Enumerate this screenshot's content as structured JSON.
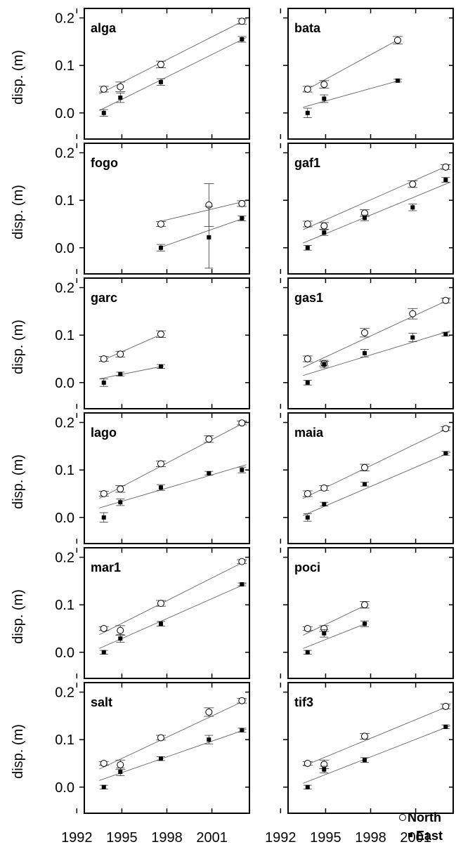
{
  "chart_data": {
    "type": "scatter",
    "ylabel": "disp. (m)",
    "xlim": [
      1992.5,
      2003.5
    ],
    "ylim": [
      -0.055,
      0.22
    ],
    "x_ticks": [
      "1992",
      "1995",
      "1998",
      "2001"
    ],
    "x_tick_values": [
      1992,
      1995,
      1998,
      2001
    ],
    "y_ticks": [
      "0.0",
      "0.1",
      "0.2"
    ],
    "y_tick_values": [
      0.0,
      0.1,
      0.2
    ],
    "legend": {
      "north": "North",
      "east": "East",
      "placement": "bottom-right of last panel"
    },
    "colors": {
      "north_fill": "#ffffff",
      "east_fill": "#000000",
      "line": "#666666",
      "frame": "#000000"
    },
    "panels": [
      {
        "site": "alga",
        "north": {
          "x": [
            1993.8,
            1994.9,
            1997.6,
            2003.0
          ],
          "y": [
            0.05,
            0.055,
            0.102,
            0.193
          ],
          "err": [
            0.006,
            0.01,
            0.007,
            0.006
          ]
        },
        "east": {
          "x": [
            1993.8,
            1994.9,
            1997.6,
            2003.0
          ],
          "y": [
            0.0,
            0.032,
            0.065,
            0.155
          ],
          "err": [
            0.007,
            0.01,
            0.007,
            0.006
          ]
        },
        "north_fit": [
          [
            1993.5,
            0.04
          ],
          [
            2003.3,
            0.197
          ]
        ],
        "east_fit": [
          [
            1993.5,
            0.005
          ],
          [
            2003.3,
            0.159
          ]
        ]
      },
      {
        "site": "bata",
        "north": {
          "x": [
            1993.8,
            1994.9,
            1999.8
          ],
          "y": [
            0.05,
            0.06,
            0.153
          ],
          "err": [
            0.006,
            0.008,
            0.008
          ]
        },
        "east": {
          "x": [
            1993.8,
            1994.9,
            1999.8
          ],
          "y": [
            0.0,
            0.03,
            0.068
          ],
          "err": [
            0.01,
            0.008,
            0.003
          ]
        },
        "north_fit": [
          [
            1993.5,
            0.045
          ],
          [
            2000.0,
            0.157
          ]
        ],
        "east_fit": [
          [
            1993.5,
            0.012
          ],
          [
            2000.0,
            0.069
          ]
        ]
      },
      {
        "site": "fogo",
        "north": {
          "x": [
            1997.6,
            2000.8,
            2003.0
          ],
          "y": [
            0.05,
            0.09,
            0.093
          ],
          "err": [
            0.005,
            0.045,
            0.006
          ]
        },
        "east": {
          "x": [
            1997.6,
            2000.8,
            2003.0
          ],
          "y": [
            0.0,
            0.022,
            0.062
          ],
          "err": [
            0.007,
            0.065,
            0.005
          ]
        },
        "north_fit": [
          [
            1997.5,
            0.055
          ],
          [
            2003.2,
            0.098
          ]
        ],
        "east_fit": [
          [
            1997.5,
            0.0
          ],
          [
            2003.2,
            0.063
          ]
        ]
      },
      {
        "site": "gaf1",
        "north": {
          "x": [
            1993.8,
            1994.9,
            1997.6,
            2000.8,
            2003.0
          ],
          "y": [
            0.05,
            0.046,
            0.073,
            0.134,
            0.17
          ],
          "err": [
            0.006,
            0.007,
            0.007,
            0.007,
            0.005
          ]
        },
        "east": {
          "x": [
            1993.8,
            1994.9,
            1997.6,
            2000.8,
            2003.0
          ],
          "y": [
            0.0,
            0.032,
            0.063,
            0.085,
            0.143
          ],
          "err": [
            0.005,
            0.006,
            0.006,
            0.007,
            0.005
          ]
        },
        "north_fit": [
          [
            1993.5,
            0.038
          ],
          [
            2003.3,
            0.175
          ]
        ],
        "east_fit": [
          [
            1993.5,
            0.01
          ],
          [
            2003.3,
            0.138
          ]
        ]
      },
      {
        "site": "garc",
        "north": {
          "x": [
            1993.8,
            1994.9,
            1997.6
          ],
          "y": [
            0.05,
            0.06,
            0.102
          ],
          "err": [
            0.005,
            0.006,
            0.007
          ]
        },
        "east": {
          "x": [
            1993.8,
            1994.9,
            1997.6
          ],
          "y": [
            0.0,
            0.018,
            0.034
          ],
          "err": [
            0.008,
            0.004,
            0.004
          ]
        },
        "north_fit": [
          [
            1993.5,
            0.044
          ],
          [
            1997.8,
            0.104
          ]
        ],
        "east_fit": [
          [
            1993.5,
            0.008
          ],
          [
            1997.8,
            0.035
          ]
        ]
      },
      {
        "site": "gas1",
        "north": {
          "x": [
            1993.8,
            1994.9,
            1997.6,
            2000.8,
            2003.0
          ],
          "y": [
            0.05,
            0.04,
            0.105,
            0.145,
            0.173
          ],
          "err": [
            0.006,
            0.005,
            0.009,
            0.011,
            0.005
          ]
        },
        "east": {
          "x": [
            1993.8,
            1994.9,
            1997.6,
            2000.8,
            2003.0
          ],
          "y": [
            0.0,
            0.039,
            0.062,
            0.095,
            0.102
          ],
          "err": [
            0.005,
            0.008,
            0.008,
            0.009,
            0.004
          ]
        },
        "north_fit": [
          [
            1993.5,
            0.032
          ],
          [
            2003.3,
            0.176
          ]
        ],
        "east_fit": [
          [
            1993.5,
            0.015
          ],
          [
            2003.3,
            0.109
          ]
        ]
      },
      {
        "site": "lago",
        "north": {
          "x": [
            1993.8,
            1994.9,
            1997.6,
            2000.8,
            2003.0
          ],
          "y": [
            0.05,
            0.06,
            0.113,
            0.165,
            0.199
          ],
          "err": [
            0.005,
            0.007,
            0.006,
            0.007,
            0.004
          ]
        },
        "east": {
          "x": [
            1993.8,
            1994.9,
            1997.6,
            2000.8,
            2003.0
          ],
          "y": [
            0.0,
            0.032,
            0.063,
            0.093,
            0.1
          ],
          "err": [
            0.01,
            0.007,
            0.006,
            0.004,
            0.006
          ]
        },
        "north_fit": [
          [
            1993.5,
            0.04
          ],
          [
            2003.3,
            0.202
          ]
        ],
        "east_fit": [
          [
            1993.5,
            0.02
          ],
          [
            2003.3,
            0.111
          ]
        ]
      },
      {
        "site": "maia",
        "north": {
          "x": [
            1993.8,
            1994.9,
            1997.6,
            2003.0
          ],
          "y": [
            0.05,
            0.062,
            0.105,
            0.187
          ],
          "err": [
            0.006,
            0.005,
            0.007,
            0.004
          ]
        },
        "east": {
          "x": [
            1993.8,
            1994.9,
            1997.6,
            2003.0
          ],
          "y": [
            0.0,
            0.028,
            0.07,
            0.135
          ],
          "err": [
            0.008,
            0.004,
            0.004,
            0.004
          ]
        },
        "north_fit": [
          [
            1993.5,
            0.04
          ],
          [
            2003.3,
            0.19
          ]
        ],
        "east_fit": [
          [
            1993.5,
            0.004
          ],
          [
            2003.3,
            0.137
          ]
        ]
      },
      {
        "site": "mar1",
        "north": {
          "x": [
            1993.8,
            1994.9,
            1997.6,
            2003.0
          ],
          "y": [
            0.05,
            0.046,
            0.103,
            0.191
          ],
          "err": [
            0.004,
            0.01,
            0.006,
            0.004
          ]
        },
        "east": {
          "x": [
            1993.8,
            1994.9,
            1997.6,
            2003.0
          ],
          "y": [
            0.0,
            0.029,
            0.06,
            0.143
          ],
          "err": [
            0.004,
            0.008,
            0.005,
            0.003
          ]
        },
        "north_fit": [
          [
            1993.5,
            0.037
          ],
          [
            2003.3,
            0.193
          ]
        ],
        "east_fit": [
          [
            1993.5,
            0.008
          ],
          [
            2003.3,
            0.145
          ]
        ]
      },
      {
        "site": "poci",
        "north": {
          "x": [
            1993.8,
            1994.9,
            1997.6
          ],
          "y": [
            0.05,
            0.05,
            0.1
          ],
          "err": [
            0.004,
            0.006,
            0.007
          ]
        },
        "east": {
          "x": [
            1993.8,
            1994.9,
            1997.6
          ],
          "y": [
            0.0,
            0.04,
            0.06
          ],
          "err": [
            0.004,
            0.008,
            0.006
          ]
        },
        "north_fit": [
          [
            1993.5,
            0.036
          ],
          [
            1997.8,
            0.101
          ]
        ],
        "east_fit": [
          [
            1993.5,
            0.008
          ],
          [
            1997.8,
            0.062
          ]
        ]
      },
      {
        "site": "salt",
        "north": {
          "x": [
            1993.8,
            1994.9,
            1997.6,
            2000.8,
            2003.0
          ],
          "y": [
            0.05,
            0.047,
            0.104,
            0.158,
            0.182
          ],
          "err": [
            0.004,
            0.01,
            0.005,
            0.009,
            0.005
          ]
        },
        "east": {
          "x": [
            1993.8,
            1994.9,
            1997.6,
            2000.8,
            2003.0
          ],
          "y": [
            0.0,
            0.032,
            0.06,
            0.1,
            0.12
          ],
          "err": [
            0.004,
            0.008,
            0.004,
            0.009,
            0.004
          ]
        },
        "north_fit": [
          [
            1993.5,
            0.038
          ],
          [
            2003.3,
            0.184
          ]
        ],
        "east_fit": [
          [
            1993.5,
            0.014
          ],
          [
            2003.3,
            0.122
          ]
        ]
      },
      {
        "site": "tif3",
        "north": {
          "x": [
            1993.8,
            1994.9,
            1997.6,
            2003.0
          ],
          "y": [
            0.05,
            0.048,
            0.107,
            0.17
          ],
          "err": [
            0.004,
            0.009,
            0.006,
            0.005
          ]
        },
        "east": {
          "x": [
            1993.8,
            1994.9,
            1997.6,
            2003.0
          ],
          "y": [
            0.0,
            0.037,
            0.057,
            0.127
          ],
          "err": [
            0.004,
            0.007,
            0.005,
            0.004
          ]
        },
        "north_fit": [
          [
            1993.5,
            0.044
          ],
          [
            2003.3,
            0.172
          ]
        ],
        "east_fit": [
          [
            1993.5,
            0.008
          ],
          [
            2003.3,
            0.129
          ]
        ]
      }
    ]
  }
}
